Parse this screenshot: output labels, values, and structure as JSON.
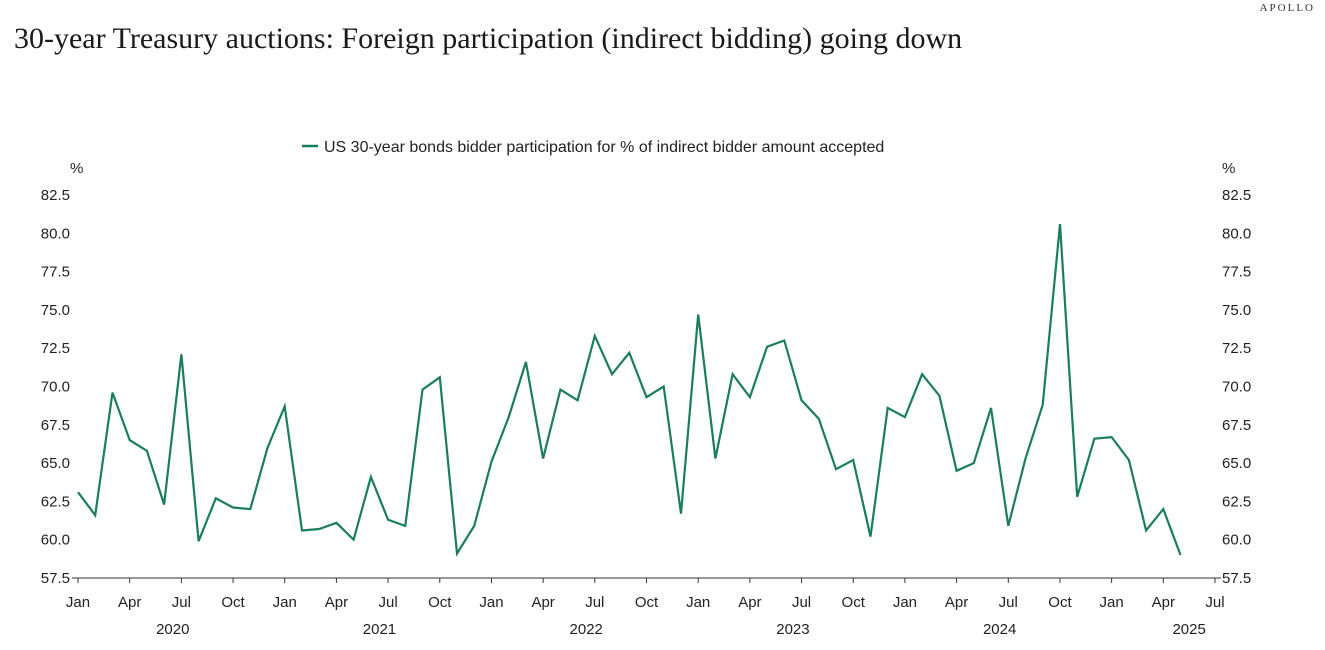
{
  "header": {
    "brand": "APOLLO",
    "title": "30-year Treasury auctions: Foreign participation (indirect bidding) going down"
  },
  "colors": {
    "line": "#1a7d5c",
    "axis": "#333333",
    "text": "#222222"
  },
  "chart_data": {
    "type": "line",
    "title": "30-year Treasury auctions: Foreign participation (indirect bidding) going down",
    "series": [
      {
        "name": "US 30-year bonds bidder participation for % of indirect bidder amount accepted",
        "x": [
          "2020-01",
          "2020-02",
          "2020-03",
          "2020-04",
          "2020-05",
          "2020-06",
          "2020-07",
          "2020-08",
          "2020-09",
          "2020-10",
          "2020-11",
          "2020-12",
          "2021-01",
          "2021-02",
          "2021-03",
          "2021-04",
          "2021-05",
          "2021-06",
          "2021-07",
          "2021-08",
          "2021-09",
          "2021-10",
          "2021-11",
          "2021-12",
          "2022-01",
          "2022-02",
          "2022-03",
          "2022-04",
          "2022-05",
          "2022-06",
          "2022-07",
          "2022-08",
          "2022-09",
          "2022-10",
          "2022-11",
          "2022-12",
          "2023-01",
          "2023-02",
          "2023-03",
          "2023-04",
          "2023-05",
          "2023-06",
          "2023-07",
          "2023-08",
          "2023-09",
          "2023-10",
          "2023-11",
          "2023-12",
          "2024-01",
          "2024-02",
          "2024-03",
          "2024-04",
          "2024-05",
          "2024-06",
          "2024-07",
          "2024-08",
          "2024-09",
          "2024-10",
          "2024-11",
          "2024-12",
          "2025-01",
          "2025-02",
          "2025-03",
          "2025-04",
          "2025-05",
          "2025-06"
        ],
        "values": [
          63.1,
          61.6,
          69.6,
          66.5,
          65.8,
          62.3,
          72.1,
          59.9,
          62.7,
          62.1,
          62.0,
          66.0,
          68.7,
          60.6,
          60.7,
          61.1,
          60.0,
          64.1,
          61.3,
          60.9,
          69.8,
          70.6,
          59.1,
          60.9,
          65.1,
          68.0,
          71.6,
          65.3,
          69.8,
          69.1,
          73.3,
          70.8,
          72.2,
          69.3,
          70.0,
          61.7,
          74.7,
          65.3,
          70.8,
          69.3,
          72.6,
          73.0,
          69.1,
          67.9,
          64.6,
          65.2,
          60.2,
          68.6,
          68.0,
          70.8,
          69.4,
          64.5,
          65.0,
          68.6,
          60.9,
          65.3,
          68.8,
          80.6,
          62.8,
          66.6,
          66.7,
          65.2,
          60.6,
          62.0,
          59.0,
          null
        ]
      }
    ],
    "ylabel_left": "%",
    "ylabel_right": "%",
    "ylim": [
      57.5,
      82.5
    ],
    "yticks": [
      "57.5",
      "60.0",
      "62.5",
      "65.0",
      "67.5",
      "70.0",
      "72.5",
      "75.0",
      "77.5",
      "80.0",
      "82.5"
    ],
    "xticks": [
      "Jan",
      "Apr",
      "Jul",
      "Oct",
      "Jan",
      "Apr",
      "Jul",
      "Oct",
      "Jan",
      "Apr",
      "Jul",
      "Oct",
      "Jan",
      "Apr",
      "Jul",
      "Oct",
      "Jan",
      "Apr",
      "Jul",
      "Oct",
      "Jan",
      "Apr",
      "Jul"
    ],
    "years": [
      "2020",
      "2021",
      "2022",
      "2023",
      "2024",
      "2025"
    ],
    "legend_position": "top-center",
    "grid": false
  }
}
